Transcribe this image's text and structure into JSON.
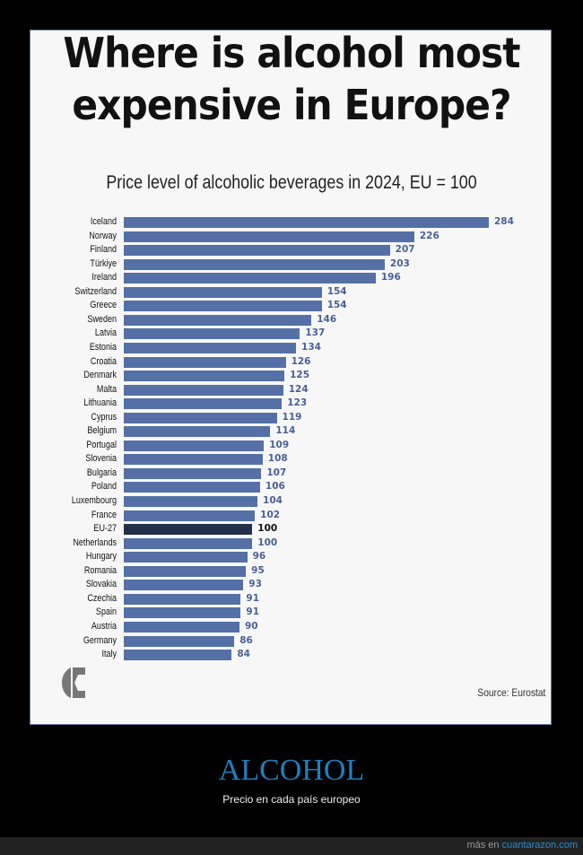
{
  "chart_data": {
    "type": "bar",
    "orientation": "horizontal",
    "title": "Where is alcohol most expensive in Europe?",
    "subtitle": "Price level of alcoholic beverages in 2024, EU = 100",
    "categories": [
      "Iceland",
      "Norway",
      "Finland",
      "Türkiye",
      "Ireland",
      "Switzerland",
      "Greece",
      "Sweden",
      "Latvia",
      "Estonia",
      "Croatia",
      "Denmark",
      "Malta",
      "Lithuania",
      "Cyprus",
      "Belgium",
      "Portugal",
      "Slovenia",
      "Bulgaria",
      "Poland",
      "Luxembourg",
      "France",
      "EU-27",
      "Netherlands",
      "Hungary",
      "Romania",
      "Slovakia",
      "Czechia",
      "Spain",
      "Austria",
      "Germany",
      "Italy"
    ],
    "values": [
      284,
      226,
      207,
      203,
      196,
      154,
      154,
      146,
      137,
      134,
      126,
      125,
      124,
      123,
      119,
      114,
      109,
      108,
      107,
      106,
      104,
      102,
      100,
      100,
      96,
      95,
      93,
      91,
      91,
      90,
      86,
      84
    ],
    "highlight": "EU-27",
    "xlim": [
      0,
      284
    ],
    "grid": false,
    "data_labels": true,
    "source": "Source: Eurostat",
    "colors": {
      "bar": "#5470a6",
      "highlight": "#24304a",
      "label": "#4a6196"
    }
  },
  "logo_icon": "E-logo",
  "caption": {
    "title": "ALCOHOL",
    "subtitle": "Precio en cada país europeo"
  },
  "footer": {
    "prefix": "más en",
    "link": "cuantarazon.com"
  }
}
